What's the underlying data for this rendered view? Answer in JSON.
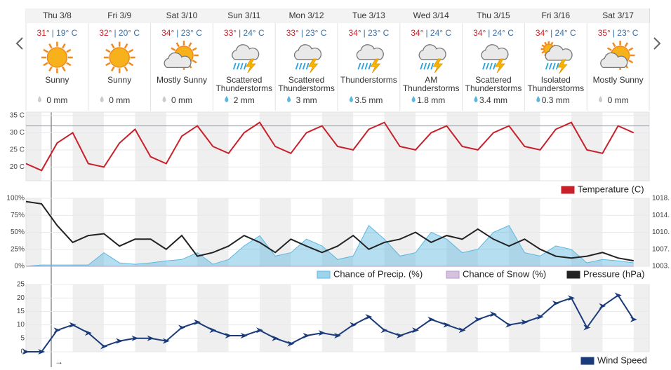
{
  "forecast": {
    "days": [
      {
        "date": "Thu 3/8",
        "high": "31°",
        "low": "| 19° C",
        "icon": "sunny",
        "condition": "Sunny",
        "precip": "0 mm"
      },
      {
        "date": "Fri 3/9",
        "high": "32°",
        "low": "| 20° C",
        "icon": "sunny",
        "condition": "Sunny",
        "precip": "0 mm"
      },
      {
        "date": "Sat 3/10",
        "high": "34°",
        "low": "| 23° C",
        "icon": "mostly-sunny",
        "condition": "Mostly Sunny",
        "precip": "0 mm"
      },
      {
        "date": "Sun 3/11",
        "high": "33°",
        "low": "| 24° C",
        "icon": "storm",
        "condition": "Scattered Thunderstorms",
        "precip": "2 mm"
      },
      {
        "date": "Mon 3/12",
        "high": "33°",
        "low": "| 23° C",
        "icon": "storm",
        "condition": "Scattered Thunderstorms",
        "precip": "3 mm"
      },
      {
        "date": "Tue 3/13",
        "high": "34°",
        "low": "| 23° C",
        "icon": "storm",
        "condition": "Thunderstorms",
        "precip": "3.5 mm"
      },
      {
        "date": "Wed 3/14",
        "high": "34°",
        "low": "| 24° C",
        "icon": "storm",
        "condition": "AM Thunderstorms",
        "precip": "1.8 mm"
      },
      {
        "date": "Thu 3/15",
        "high": "34°",
        "low": "| 24° C",
        "icon": "storm",
        "condition": "Scattered Thunderstorms",
        "precip": "3.4 mm"
      },
      {
        "date": "Fri 3/16",
        "high": "34°",
        "low": "| 24° C",
        "icon": "isolated-storm",
        "condition": "Isolated Thunderstorms",
        "precip": "0.3 mm"
      },
      {
        "date": "Sat 3/17",
        "high": "35°",
        "low": "| 23° C",
        "icon": "mostly-sunny",
        "condition": "Mostly Sunny",
        "precip": "0 mm"
      }
    ],
    "cursor_label": "→"
  },
  "chart_data": [
    {
      "type": "line",
      "xlim": [
        0,
        240
      ],
      "x": [
        0,
        6,
        12,
        18,
        24,
        30,
        36,
        42,
        48,
        54,
        60,
        66,
        72,
        78,
        84,
        90,
        96,
        102,
        108,
        114,
        120,
        126,
        132,
        138,
        144,
        150,
        156,
        162,
        168,
        174,
        180,
        186,
        192,
        198,
        204,
        210,
        216,
        222,
        228,
        234
      ],
      "ylim": [
        16,
        36
      ],
      "yticks": [
        {
          "value": 20,
          "label": "20 C"
        },
        {
          "value": 25,
          "label": "25 C"
        },
        {
          "value": 30,
          "label": "30 C"
        },
        {
          "value": 35,
          "label": "35 C"
        }
      ],
      "reference": 32,
      "series": [
        {
          "name": "Temperature (C)",
          "color": "#c8202a",
          "values": [
            21,
            19,
            27,
            30,
            21,
            20,
            27,
            31,
            23,
            21,
            29,
            32,
            26,
            24,
            30,
            33,
            26,
            24,
            30,
            32,
            26,
            25,
            31,
            33,
            26,
            25,
            30,
            32,
            26,
            25,
            30,
            32,
            26,
            25,
            31,
            33,
            25,
            24,
            32,
            30
          ]
        }
      ]
    },
    {
      "type": "line",
      "xlim": [
        0,
        240
      ],
      "x": [
        0,
        6,
        12,
        18,
        24,
        30,
        36,
        42,
        48,
        54,
        60,
        66,
        72,
        78,
        84,
        90,
        96,
        102,
        108,
        114,
        120,
        126,
        132,
        138,
        144,
        150,
        156,
        162,
        168,
        174,
        180,
        186,
        192,
        198,
        204,
        210,
        216,
        222,
        228,
        234
      ],
      "ylim": [
        0,
        100
      ],
      "yticks": [
        {
          "value": 0,
          "label": "0%"
        },
        {
          "value": 25,
          "label": "25%"
        },
        {
          "value": 50,
          "label": "50%"
        },
        {
          "value": 75,
          "label": "75%"
        },
        {
          "value": 100,
          "label": "100%"
        }
      ],
      "y2lim": [
        1003.5,
        1018.3
      ],
      "y2ticks": [
        {
          "value": 1003.5,
          "label": "1003."
        },
        {
          "value": 1007.2,
          "label": "1007."
        },
        {
          "value": 1010.9,
          "label": "1010."
        },
        {
          "value": 1014.6,
          "label": "1014."
        },
        {
          "value": 1018.3,
          "label": "1018."
        }
      ],
      "series": [
        {
          "name": "Chance of Precip. (%)",
          "type": "area",
          "color": "#5bb7e0",
          "values": [
            0,
            2,
            2,
            2,
            2,
            20,
            5,
            3,
            5,
            8,
            10,
            20,
            3,
            10,
            30,
            45,
            15,
            20,
            40,
            30,
            10,
            15,
            60,
            40,
            15,
            20,
            50,
            40,
            20,
            25,
            50,
            60,
            20,
            15,
            30,
            25,
            5,
            10,
            8,
            5
          ]
        },
        {
          "name": "Chance of Snow (%)",
          "type": "area",
          "color": "#b79ac8",
          "values": [
            0,
            0,
            0,
            0,
            0,
            0,
            0,
            0,
            0,
            0,
            0,
            0,
            0,
            0,
            0,
            0,
            0,
            0,
            0,
            0,
            0,
            0,
            0,
            0,
            0,
            0,
            0,
            0,
            0,
            0,
            0,
            0,
            0,
            0,
            0,
            0,
            0,
            0,
            0,
            0
          ]
        },
        {
          "name": "Pressure (hPa)",
          "axis": "y2",
          "color": "#222222",
          "values": [
            1017.6,
            1017.1,
            1012.4,
            1008.7,
            1010.2,
            1010.6,
            1007.9,
            1009.4,
            1009.4,
            1007.2,
            1010.2,
            1005.7,
            1006.5,
            1007.9,
            1010.2,
            1008.7,
            1006.5,
            1009.4,
            1007.9,
            1006.5,
            1007.9,
            1010.2,
            1007.2,
            1008.7,
            1009.4,
            1010.9,
            1008.7,
            1010.2,
            1009.4,
            1011.6,
            1009.4,
            1007.9,
            1009.4,
            1007.2,
            1005.7,
            1005.3,
            1005.7,
            1006.5,
            1005.3,
            1004.7
          ]
        }
      ]
    },
    {
      "type": "line",
      "xlim": [
        0,
        240
      ],
      "x": [
        0,
        6,
        12,
        18,
        24,
        30,
        36,
        42,
        48,
        54,
        60,
        66,
        72,
        78,
        84,
        90,
        96,
        102,
        108,
        114,
        120,
        126,
        132,
        138,
        144,
        150,
        156,
        162,
        168,
        174,
        180,
        186,
        192,
        198,
        204,
        210,
        216,
        222,
        228,
        234
      ],
      "ylim": [
        0,
        25
      ],
      "yticks": [
        0,
        5,
        10,
        15,
        20,
        25
      ],
      "series": [
        {
          "name": "Wind Speed",
          "color": "#1a3a7a",
          "values": [
            0,
            0,
            8,
            10,
            7,
            2,
            4,
            5,
            5,
            4,
            9,
            11,
            8,
            6,
            6,
            8,
            5,
            3,
            6,
            7,
            6,
            10,
            13,
            8,
            6,
            8,
            12,
            10,
            8,
            12,
            14,
            10,
            11,
            13,
            18,
            20,
            9,
            17,
            21,
            12
          ]
        }
      ]
    }
  ]
}
